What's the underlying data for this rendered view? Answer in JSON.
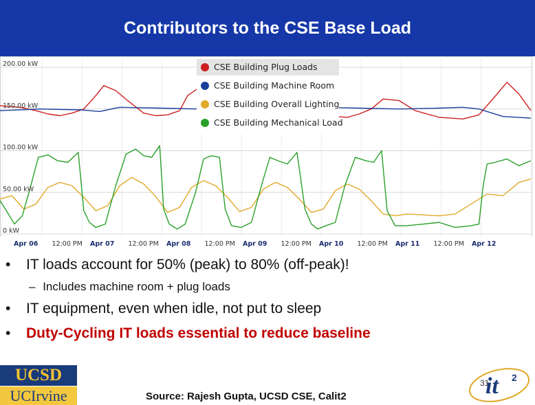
{
  "slide": {
    "title": "Contributors to the CSE Base Load",
    "bullets": [
      "IT loads account for 50% (peak) to 80% (off-peak)!",
      "IT equipment, even when idle, not put to sleep",
      "Duty-Cycling IT loads essential to reduce baseline"
    ],
    "sub_bullet": "Includes machine room + plug loads",
    "bullet_marker": "•",
    "sub_marker": "–",
    "source": "Source: Rajesh Gupta, UCSD CSE, Calit2",
    "page_number": "31",
    "logos": {
      "ucsd": "UCSD",
      "uci": "UCIrvine",
      "it2": "it"
    },
    "colors": {
      "title_bg": "#1537a8",
      "highlight_text": "#c00000"
    }
  },
  "chart_data": {
    "type": "line",
    "ylabel": "",
    "xlabel": "",
    "y_ticks": [
      "200.00 kW",
      "150.00 kW",
      "100.00 kW",
      "50.00 kW",
      "0 kW"
    ],
    "ylim": [
      0,
      200
    ],
    "x_ticks": [
      "Apr 06",
      "12:00 PM",
      "Apr 07",
      "12:00 PM",
      "Apr 08",
      "12:00 PM",
      "Apr 09",
      "12:00 PM",
      "Apr 10",
      "12:00 PM",
      "Apr 11",
      "12:00 PM",
      "Apr 12"
    ],
    "xlim": [
      0,
      6.65
    ],
    "grid": true,
    "legend_position": "top-center",
    "series": [
      {
        "name": "CSE Building Plug Loads",
        "color": "#cc1f1f",
        "x": [
          0,
          0.25,
          0.45,
          0.6,
          0.75,
          0.9,
          1.05,
          1.2,
          1.3,
          1.45,
          1.6,
          1.8,
          1.95,
          2.1,
          2.25,
          2.35,
          2.5,
          2.7,
          2.85,
          3.0,
          3.15,
          3.3,
          3.4,
          3.55,
          3.75,
          3.9,
          4.05,
          4.2,
          4.35,
          4.5,
          4.65,
          4.8,
          5.0,
          5.2,
          5.5,
          5.8,
          6.0,
          6.2,
          6.35,
          6.5,
          6.65
        ],
        "y": [
          154,
          152,
          148,
          144,
          142,
          145,
          150,
          166,
          178,
          172,
          160,
          145,
          142,
          143,
          148,
          166,
          176,
          170,
          158,
          144,
          142,
          144,
          152,
          166,
          172,
          163,
          148,
          141,
          140,
          144,
          150,
          162,
          160,
          148,
          140,
          138,
          143,
          165,
          182,
          168,
          148
        ]
      },
      {
        "name": "CSE Building Machine Room",
        "color": "#1a3d99",
        "x": [
          0,
          0.5,
          1.0,
          1.25,
          1.5,
          2.0,
          2.5,
          3.0,
          3.5,
          4.0,
          4.5,
          5.0,
          5.5,
          5.8,
          6.0,
          6.3,
          6.65
        ],
        "y": [
          148,
          150,
          149,
          147,
          152,
          151,
          150,
          149,
          151,
          152,
          151,
          150,
          151,
          152,
          150,
          141,
          139
        ]
      },
      {
        "name": "CSE Building Overall Lighting",
        "color": "#e0a92a",
        "x": [
          0,
          0.15,
          0.3,
          0.45,
          0.6,
          0.75,
          0.9,
          1.05,
          1.2,
          1.35,
          1.5,
          1.65,
          1.8,
          1.95,
          2.1,
          2.25,
          2.4,
          2.55,
          2.7,
          2.85,
          3.0,
          3.15,
          3.3,
          3.45,
          3.6,
          3.75,
          3.9,
          4.05,
          4.2,
          4.35,
          4.5,
          4.65,
          4.8,
          4.95,
          5.1,
          5.3,
          5.5,
          5.7,
          5.9,
          6.1,
          6.3,
          6.5,
          6.65
        ],
        "y": [
          42,
          46,
          30,
          36,
          56,
          62,
          58,
          44,
          28,
          34,
          58,
          68,
          60,
          45,
          26,
          32,
          56,
          64,
          58,
          44,
          27,
          32,
          54,
          62,
          56,
          42,
          26,
          30,
          52,
          60,
          54,
          40,
          24,
          22,
          24,
          23,
          22,
          24,
          36,
          48,
          46,
          62,
          66
        ]
      },
      {
        "name": "CSE Building Mechanical Load",
        "color": "#2aa02a",
        "x": [
          0,
          0.08,
          0.18,
          0.28,
          0.38,
          0.48,
          0.6,
          0.72,
          0.85,
          0.98,
          1.05,
          1.12,
          1.2,
          1.32,
          1.45,
          1.58,
          1.7,
          1.8,
          1.9,
          2.0,
          2.05,
          2.12,
          2.22,
          2.32,
          2.45,
          2.55,
          2.65,
          2.75,
          2.82,
          2.9,
          3.02,
          3.15,
          3.28,
          3.38,
          3.48,
          3.6,
          3.72,
          3.82,
          3.9,
          3.98,
          4.08,
          4.2,
          4.32,
          4.45,
          4.58,
          4.68,
          4.78,
          4.85,
          4.95,
          5.1,
          5.3,
          5.5,
          5.7,
          5.9,
          6.0,
          6.05,
          6.1,
          6.2,
          6.35,
          6.5,
          6.6,
          6.65
        ],
        "y": [
          40,
          28,
          12,
          22,
          56,
          92,
          95,
          88,
          86,
          98,
          28,
          14,
          8,
          12,
          58,
          96,
          102,
          94,
          92,
          106,
          30,
          12,
          6,
          12,
          50,
          90,
          94,
          92,
          30,
          10,
          8,
          14,
          60,
          92,
          88,
          84,
          98,
          30,
          12,
          6,
          10,
          14,
          58,
          92,
          88,
          86,
          100,
          28,
          10,
          10,
          12,
          14,
          8,
          10,
          12,
          56,
          84,
          86,
          90,
          82,
          86,
          88
        ]
      }
    ]
  }
}
